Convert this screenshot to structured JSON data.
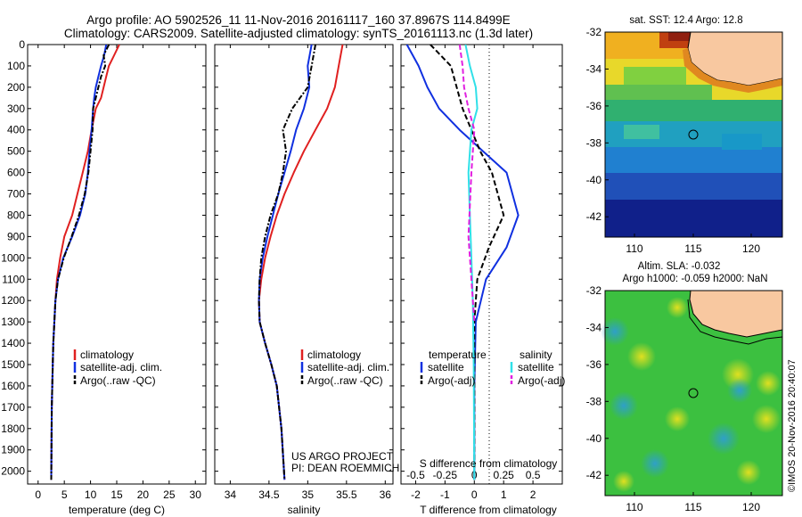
{
  "header": {
    "title_line1": "Argo profile: AO 5902526_11 11-Nov-2016 20161117_160 37.8967S 114.8499E",
    "title_line2": "Climatology: CARS2009. Satellite-adjusted climatology: synTS_20161113.nc (1.3d later)"
  },
  "credits": {
    "line1": "US ARGO PROJECT",
    "line2": "PI: DEAN ROEMMICH"
  },
  "watermark": "©IMOS 20-Nov-2016 20:40:07",
  "colors": {
    "climatology": "#e02020",
    "satellite": "#1030e0",
    "argo": "#000000",
    "sal_satellite": "#30e0e8",
    "sal_argo": "#e020e0"
  },
  "chart_data": [
    {
      "type": "line",
      "xlabel": "temperature (deg C)",
      "xlim": [
        -2,
        32
      ],
      "xticks": [
        0,
        5,
        10,
        15,
        20,
        25,
        30
      ],
      "ylim": [
        0,
        2060
      ],
      "yticks": [
        0,
        100,
        200,
        300,
        400,
        500,
        600,
        700,
        800,
        900,
        1000,
        1100,
        1200,
        1300,
        1400,
        1500,
        1600,
        1700,
        1800,
        1900,
        2000
      ],
      "legend": [
        "climatology",
        "satellite-adj. clim.",
        "Argo(..raw -QC)"
      ],
      "series": [
        {
          "name": "climatology",
          "color": "#e02020",
          "style": "solid",
          "x": [
            15.5,
            14.5,
            13.5,
            13.0,
            12.5,
            12.0,
            11.0,
            10.2,
            9.5,
            8.5,
            7.5,
            6.5,
            5.0,
            4.2,
            3.6,
            3.3,
            3.1,
            2.9,
            2.8,
            2.6,
            2.5
          ],
          "y": [
            0,
            50,
            100,
            150,
            200,
            250,
            300,
            400,
            500,
            600,
            700,
            800,
            900,
            1000,
            1100,
            1200,
            1300,
            1400,
            1500,
            1700,
            2040
          ]
        },
        {
          "name": "satellite-adj. clim.",
          "color": "#1030e0",
          "style": "solid",
          "x": [
            13.0,
            12.6,
            12.0,
            11.5,
            11.0,
            10.7,
            10.5,
            10.2,
            9.8,
            9.5,
            9.0,
            8.0,
            6.5,
            4.8,
            3.8,
            3.3,
            3.1,
            2.9,
            2.8,
            2.6,
            2.5
          ],
          "y": [
            0,
            50,
            100,
            150,
            200,
            250,
            300,
            400,
            500,
            600,
            700,
            800,
            900,
            1000,
            1100,
            1200,
            1300,
            1400,
            1500,
            1700,
            2040
          ]
        },
        {
          "name": "Argo(..raw -QC)",
          "color": "#000000",
          "style": "dashdot",
          "x": [
            13.5,
            12.5,
            12.8,
            12.0,
            11.5,
            11.0,
            10.5,
            10.4,
            10.0,
            9.6,
            8.9,
            7.8,
            6.4,
            4.9,
            3.8,
            3.3,
            3.1,
            2.9,
            2.8,
            2.6,
            2.5
          ],
          "y": [
            0,
            50,
            100,
            150,
            200,
            250,
            300,
            400,
            500,
            600,
            700,
            800,
            900,
            1000,
            1100,
            1200,
            1300,
            1400,
            1500,
            1700,
            2040
          ]
        }
      ]
    },
    {
      "type": "line",
      "xlabel": "salinity",
      "xlim": [
        33.8,
        36.1
      ],
      "xticks": [
        34,
        34.5,
        35,
        35.5,
        36
      ],
      "ylim": [
        0,
        2060
      ],
      "legend": [
        "climatology",
        "satellite-adj. clim.",
        "Argo(..raw -QC)"
      ],
      "series": [
        {
          "name": "climatology",
          "color": "#e02020",
          "style": "solid",
          "x": [
            35.45,
            35.4,
            35.35,
            35.25,
            35.1,
            34.95,
            34.82,
            34.7,
            34.6,
            34.52,
            34.45,
            34.4,
            34.37,
            34.38,
            34.45,
            34.53,
            34.6,
            34.66,
            34.7
          ],
          "y": [
            0,
            100,
            200,
            300,
            400,
            500,
            600,
            700,
            800,
            900,
            1000,
            1100,
            1200,
            1300,
            1400,
            1500,
            1600,
            1800,
            2040
          ]
        },
        {
          "name": "satellite-adj. clim.",
          "color": "#1030e0",
          "style": "solid",
          "x": [
            35.05,
            35.0,
            35.02,
            34.95,
            34.85,
            34.78,
            34.7,
            34.62,
            34.55,
            34.48,
            34.42,
            34.38,
            34.37,
            34.38,
            34.45,
            34.53,
            34.6,
            34.66,
            34.7
          ],
          "y": [
            0,
            100,
            200,
            300,
            400,
            500,
            600,
            700,
            800,
            900,
            1000,
            1100,
            1200,
            1300,
            1400,
            1500,
            1600,
            1800,
            2040
          ]
        },
        {
          "name": "Argo(..raw -QC)",
          "color": "#000000",
          "style": "dashdot",
          "x": [
            35.1,
            35.05,
            35.0,
            34.8,
            34.68,
            34.72,
            34.68,
            34.62,
            34.52,
            34.45,
            34.4,
            34.38,
            34.37,
            34.38,
            34.45,
            34.53,
            34.6,
            34.66,
            34.7
          ],
          "y": [
            0,
            100,
            200,
            300,
            400,
            500,
            600,
            700,
            800,
            900,
            1000,
            1100,
            1200,
            1300,
            1400,
            1500,
            1600,
            1800,
            2040
          ]
        }
      ]
    },
    {
      "type": "line",
      "xlabel": "T difference from climatology",
      "xlabel_top": "S difference from climatology",
      "xlim": [
        -2.5,
        3.0
      ],
      "xticks": [
        -2,
        -1,
        0,
        1,
        2
      ],
      "xticks_s": [
        "-0.5",
        "-0.25",
        "0",
        "0.25",
        "0.5"
      ],
      "ylim": [
        0,
        2060
      ],
      "legend_groups": {
        "temperature": "temperature",
        "salinity": "salinity"
      },
      "legend_temperature": [
        "satellite",
        "Argo(-adj)"
      ],
      "legend_salinity": [
        "satellite",
        "Argo(-adj)"
      ],
      "series": [
        {
          "name": "temperature satellite",
          "color": "#1030e0",
          "style": "solid",
          "x": [
            -2.3,
            -1.9,
            -1.6,
            -1.2,
            -0.5,
            0.3,
            1.1,
            1.5,
            1.1,
            0.4,
            0.05,
            0,
            0
          ],
          "y": [
            0,
            100,
            200,
            300,
            400,
            500,
            600,
            800,
            950,
            1100,
            1300,
            1600,
            2040
          ]
        },
        {
          "name": "temperature Argo(-adj)",
          "color": "#000000",
          "style": "dashed",
          "x": [
            -1.5,
            -0.8,
            -0.6,
            -0.4,
            -0.1,
            0.2,
            0.6,
            1.0,
            0.5,
            0.1,
            0,
            0
          ],
          "y": [
            0,
            100,
            200,
            300,
            400,
            500,
            600,
            800,
            950,
            1100,
            1300,
            2040
          ]
        },
        {
          "name": "salinity satellite",
          "color": "#30e0e8",
          "style": "solid",
          "x": [
            -0.3,
            -0.15,
            0.05,
            0.1,
            -0.1,
            -0.2,
            -0.15,
            -0.1,
            -0.05,
            -0.02,
            0
          ],
          "y": [
            0,
            100,
            200,
            300,
            400,
            600,
            800,
            1000,
            1200,
            1500,
            2040
          ]
        },
        {
          "name": "salinity Argo(-adj)",
          "color": "#e020e0",
          "style": "dashed",
          "x": [
            -0.5,
            -0.4,
            -0.35,
            -0.2,
            0.0,
            -0.1,
            -0.2,
            -0.1,
            0
          ],
          "y": [
            0,
            100,
            200,
            300,
            400,
            600,
            900,
            1100,
            1300
          ]
        }
      ]
    }
  ],
  "maps": {
    "sst": {
      "title": "sat. SST: 12.4 Argo: 12.8",
      "yticks": [
        "-32",
        "-34",
        "-36",
        "-38",
        "-40",
        "-42"
      ],
      "xticks": [
        "110",
        "115",
        "120"
      ]
    },
    "sla": {
      "title1": "Altim. SLA: -0.032",
      "title2": "Argo h1000: -0.059 h2000: NaN",
      "yticks": [
        "-32",
        "-34",
        "-36",
        "-38",
        "-40",
        "-42"
      ],
      "xticks": [
        "110",
        "115",
        "120"
      ]
    }
  }
}
